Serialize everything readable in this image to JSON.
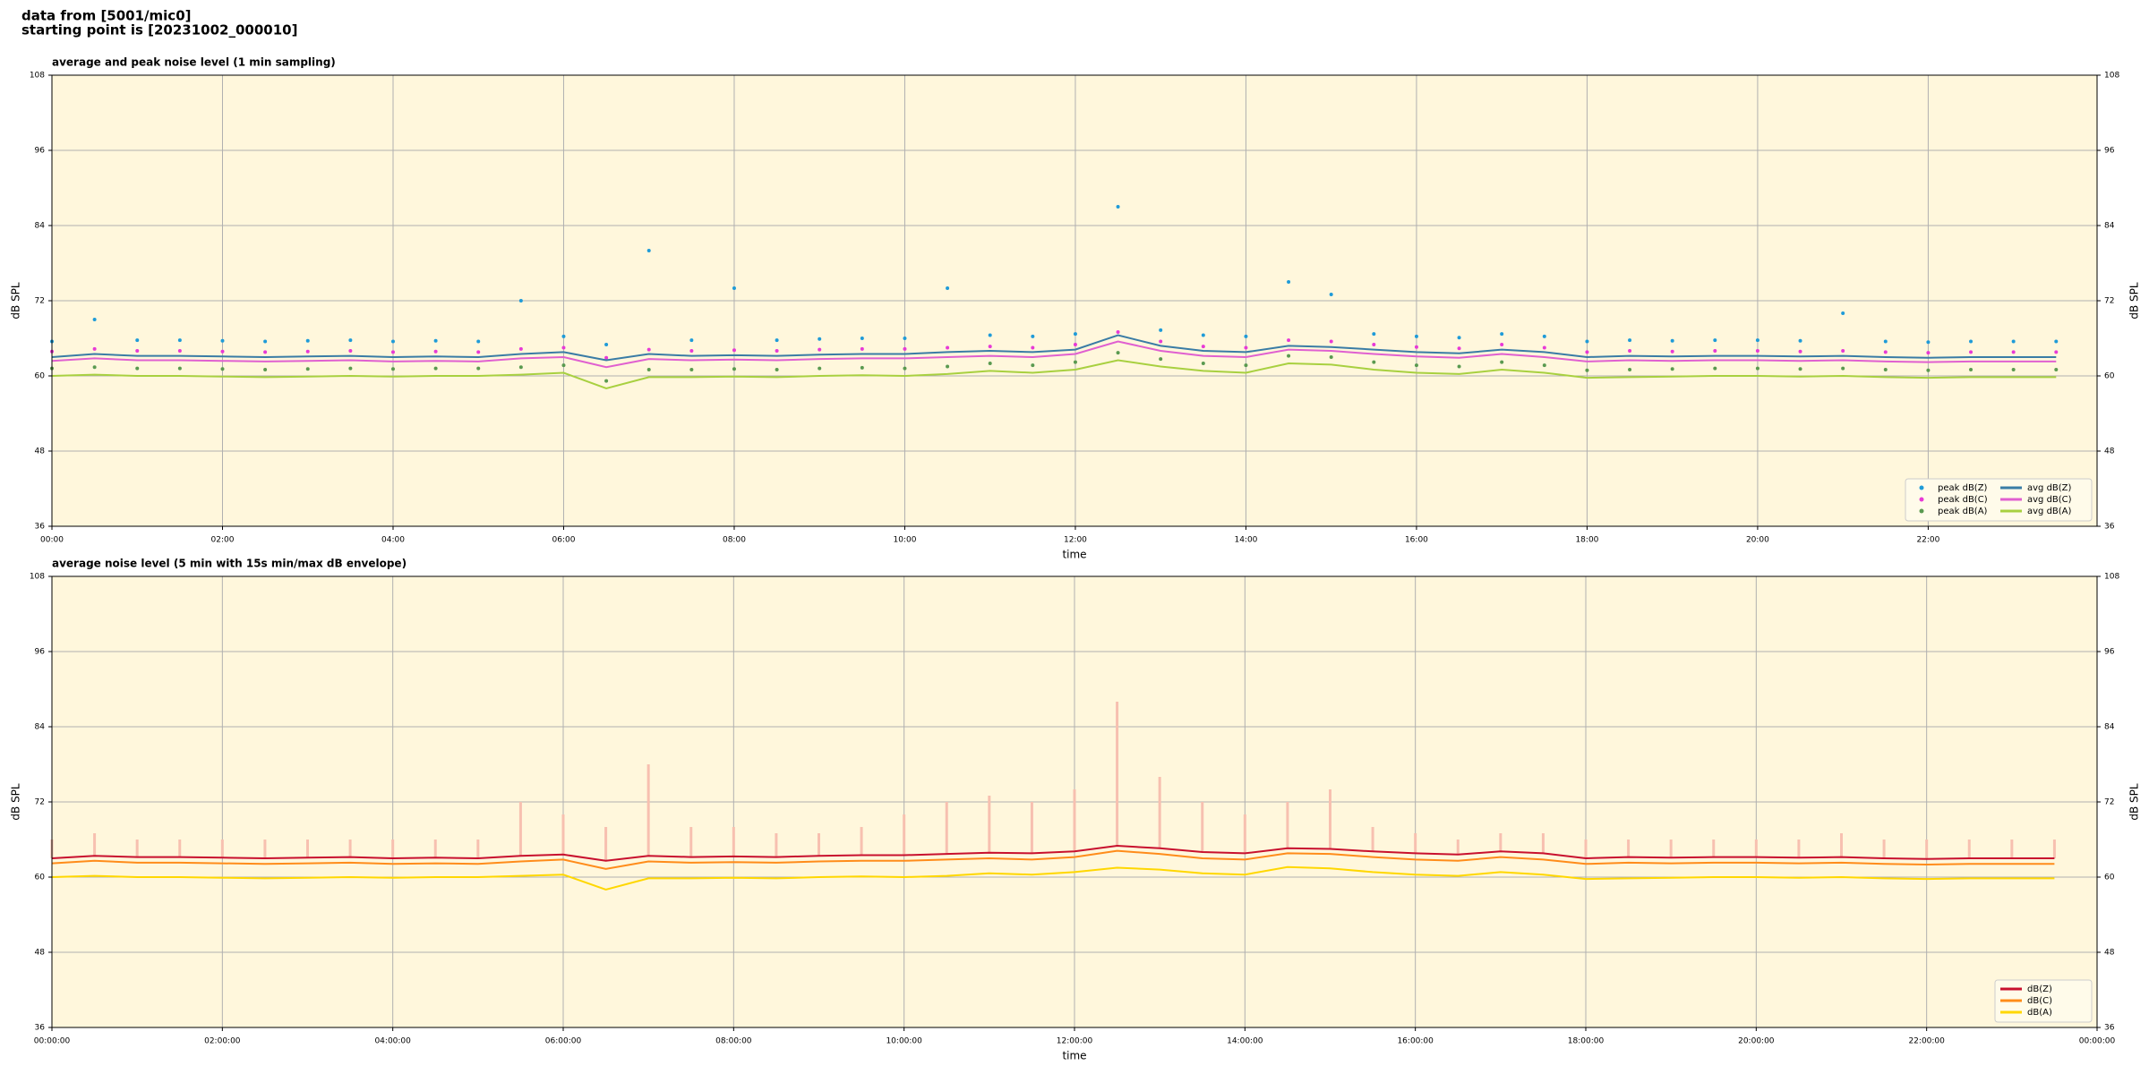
{
  "header": {
    "lines": [
      "data from [5001/mic0]",
      "starting point is [20231002_000010]"
    ]
  },
  "chart_data": [
    {
      "type": "timeseries",
      "title": "average and peak noise level (1 min sampling)",
      "xlabel": "time",
      "ylabel": "dB SPL",
      "xlim": [
        0,
        23.98
      ],
      "ylim": [
        36,
        108
      ],
      "yticks": [
        36,
        48,
        60,
        72,
        84,
        96,
        108
      ],
      "xticks": [
        {
          "value": 0,
          "label": "00:00"
        },
        {
          "value": 2,
          "label": "02:00"
        },
        {
          "value": 4,
          "label": "04:00"
        },
        {
          "value": 6,
          "label": "06:00"
        },
        {
          "value": 8,
          "label": "08:00"
        },
        {
          "value": 10,
          "label": "10:00"
        },
        {
          "value": 12,
          "label": "12:00"
        },
        {
          "value": 14,
          "label": "14:00"
        },
        {
          "value": 16,
          "label": "16:00"
        },
        {
          "value": 18,
          "label": "18:00"
        },
        {
          "value": 20,
          "label": "20:00"
        },
        {
          "value": 22,
          "label": "22:00"
        }
      ],
      "grid": true,
      "legend": "lower right",
      "legend_ncol": 2,
      "background": "#fff7dc",
      "x": [
        0,
        0.5,
        1,
        1.5,
        2,
        2.5,
        3,
        3.5,
        4,
        4.5,
        5,
        5.5,
        6,
        6.5,
        7,
        7.5,
        8,
        8.5,
        9,
        9.5,
        10,
        10.5,
        11,
        11.5,
        12,
        12.5,
        13,
        13.5,
        14,
        14.5,
        15,
        15.5,
        16,
        16.5,
        17,
        17.5,
        18,
        18.5,
        19,
        19.5,
        20,
        20.5,
        21,
        21.5,
        22,
        22.5,
        23,
        23.5
      ],
      "series": [
        {
          "name": "peak dB(Z)",
          "style": "dots",
          "color": "#1f9bd8",
          "values": [
            65.5,
            69,
            65.7,
            65.7,
            65.6,
            65.5,
            65.6,
            65.7,
            65.5,
            65.6,
            65.5,
            72,
            66.3,
            65,
            80,
            65.7,
            74,
            65.7,
            65.9,
            66,
            66,
            74,
            66.5,
            66.3,
            66.7,
            87,
            67.3,
            66.5,
            66.3,
            75,
            73,
            66.7,
            66.3,
            66.1,
            66.7,
            66.3,
            65.5,
            65.7,
            65.6,
            65.7,
            65.7,
            65.6,
            70,
            65.5,
            65.4,
            65.5,
            65.5,
            65.5
          ]
        },
        {
          "name": "peak dB(C)",
          "style": "dots",
          "color": "#e83ad6",
          "values": [
            63.9,
            64.3,
            64,
            64,
            63.9,
            63.8,
            63.9,
            64,
            63.8,
            63.9,
            63.8,
            64.3,
            64.5,
            62.9,
            64.2,
            64,
            64.1,
            64,
            64.2,
            64.3,
            64.3,
            64.5,
            64.7,
            64.5,
            65,
            67,
            65.5,
            64.7,
            64.5,
            65.7,
            65.5,
            65,
            64.6,
            64.4,
            65,
            64.5,
            63.8,
            64,
            63.9,
            64,
            64,
            63.9,
            64,
            63.8,
            63.7,
            63.8,
            63.8,
            63.8
          ]
        },
        {
          "name": "peak dB(A)",
          "style": "dots",
          "color": "#5a9a50",
          "values": [
            61.2,
            61.4,
            61.2,
            61.2,
            61.1,
            61,
            61.1,
            61.2,
            61.1,
            61.2,
            61.2,
            61.4,
            61.7,
            59.2,
            61,
            61,
            61.1,
            61,
            61.2,
            61.3,
            61.2,
            61.5,
            62,
            61.7,
            62.2,
            63.7,
            62.7,
            62,
            61.7,
            63.2,
            63,
            62.2,
            61.7,
            61.5,
            62.2,
            61.7,
            60.9,
            61,
            61.1,
            61.2,
            61.2,
            61.1,
            61.2,
            61,
            60.9,
            61,
            61,
            61
          ]
        },
        {
          "name": "avg dB(Z)",
          "style": "line",
          "color": "#3a7ca5",
          "values": [
            63,
            63.5,
            63.2,
            63.2,
            63.1,
            63,
            63.1,
            63.2,
            63,
            63.1,
            63,
            63.5,
            63.8,
            62.5,
            63.5,
            63.2,
            63.3,
            63.2,
            63.4,
            63.5,
            63.5,
            63.8,
            64,
            63.8,
            64.2,
            66.5,
            64.8,
            64,
            63.8,
            64.8,
            64.6,
            64.2,
            63.8,
            63.6,
            64.2,
            63.8,
            63,
            63.2,
            63.1,
            63.2,
            63.2,
            63.1,
            63.2,
            63,
            62.9,
            63,
            63,
            63
          ]
        },
        {
          "name": "avg dB(C)",
          "style": "line",
          "color": "#e060d0",
          "values": [
            62.4,
            62.8,
            62.5,
            62.5,
            62.4,
            62.3,
            62.4,
            62.5,
            62.3,
            62.4,
            62.3,
            62.8,
            63,
            61.4,
            62.7,
            62.5,
            62.6,
            62.5,
            62.7,
            62.8,
            62.8,
            63,
            63.2,
            63,
            63.5,
            65.5,
            64,
            63.2,
            63,
            64.2,
            64,
            63.5,
            63.1,
            62.9,
            63.5,
            63,
            62.3,
            62.5,
            62.4,
            62.5,
            62.5,
            62.4,
            62.5,
            62.3,
            62.2,
            62.3,
            62.3,
            62.3
          ]
        },
        {
          "name": "avg dB(A)",
          "style": "line",
          "color": "#a8d040",
          "values": [
            60,
            60.2,
            60,
            60,
            59.9,
            59.8,
            59.9,
            60,
            59.9,
            60,
            60,
            60.2,
            60.5,
            58,
            59.8,
            59.8,
            59.9,
            59.8,
            60,
            60.1,
            60,
            60.3,
            60.8,
            60.5,
            61,
            62.5,
            61.5,
            60.8,
            60.5,
            62,
            61.8,
            61,
            60.5,
            60.3,
            61,
            60.5,
            59.7,
            59.8,
            59.9,
            60,
            60,
            59.9,
            60,
            59.8,
            59.7,
            59.8,
            59.8,
            59.8
          ]
        }
      ]
    },
    {
      "type": "timeseries",
      "title": "average noise level (5 min with 15s min/max dB envelope)",
      "xlabel": "time",
      "ylabel": "dB SPL",
      "xlim": [
        0,
        24
      ],
      "ylim": [
        36,
        108
      ],
      "yticks": [
        36,
        48,
        60,
        72,
        84,
        96,
        108
      ],
      "xticks": [
        {
          "value": 0,
          "label": "00:00:00"
        },
        {
          "value": 2,
          "label": "02:00:00"
        },
        {
          "value": 4,
          "label": "04:00:00"
        },
        {
          "value": 6,
          "label": "06:00:00"
        },
        {
          "value": 8,
          "label": "08:00:00"
        },
        {
          "value": 10,
          "label": "10:00:00"
        },
        {
          "value": 12,
          "label": "12:00:00"
        },
        {
          "value": 14,
          "label": "14:00:00"
        },
        {
          "value": 16,
          "label": "16:00:00"
        },
        {
          "value": 18,
          "label": "18:00:00"
        },
        {
          "value": 20,
          "label": "20:00:00"
        },
        {
          "value": 22,
          "label": "22:00:00"
        },
        {
          "value": 24,
          "label": "00:00:00"
        }
      ],
      "grid": true,
      "legend": "lower right",
      "legend_ncol": 1,
      "background": "#fff7dc",
      "x": [
        0,
        0.5,
        1,
        1.5,
        2,
        2.5,
        3,
        3.5,
        4,
        4.5,
        5,
        5.5,
        6,
        6.5,
        7,
        7.5,
        8,
        8.5,
        9,
        9.5,
        10,
        10.5,
        11,
        11.5,
        12,
        12.5,
        13,
        13.5,
        14,
        14.5,
        15,
        15.5,
        16,
        16.5,
        17,
        17.5,
        18,
        18.5,
        19,
        19.5,
        20,
        20.5,
        21,
        21.5,
        22,
        22.5,
        23,
        23.5
      ],
      "envelope_color": "#f7c0b0",
      "envelope_max": [
        66,
        67,
        66,
        66,
        66,
        66,
        66,
        66,
        66,
        66,
        66,
        72,
        70,
        68,
        78,
        68,
        68,
        67,
        67,
        68,
        70,
        72,
        73,
        72,
        74,
        88,
        76,
        72,
        70,
        72,
        74,
        68,
        67,
        66,
        67,
        67,
        66,
        66,
        66,
        66,
        66,
        66,
        67,
        66,
        66,
        66,
        66,
        66
      ],
      "series": [
        {
          "name": "dB(Z)",
          "style": "line",
          "color": "#c8102e",
          "values": [
            63,
            63.4,
            63.2,
            63.2,
            63.1,
            63,
            63.1,
            63.2,
            63,
            63.1,
            63,
            63.4,
            63.6,
            62.6,
            63.4,
            63.2,
            63.3,
            63.2,
            63.4,
            63.5,
            63.5,
            63.7,
            63.9,
            63.8,
            64.1,
            65,
            64.6,
            64,
            63.8,
            64.6,
            64.5,
            64.1,
            63.8,
            63.6,
            64.1,
            63.8,
            63,
            63.2,
            63.1,
            63.2,
            63.2,
            63.1,
            63.2,
            63,
            62.9,
            63,
            63,
            63
          ]
        },
        {
          "name": "dB(C)",
          "style": "line",
          "color": "#ff8c1a",
          "values": [
            62.2,
            62.6,
            62.3,
            62.3,
            62.2,
            62.1,
            62.2,
            62.3,
            62.1,
            62.2,
            62.1,
            62.5,
            62.8,
            61.3,
            62.5,
            62.3,
            62.4,
            62.3,
            62.5,
            62.6,
            62.6,
            62.8,
            63,
            62.8,
            63.2,
            64.2,
            63.7,
            63,
            62.8,
            63.8,
            63.7,
            63.2,
            62.8,
            62.6,
            63.2,
            62.8,
            62.1,
            62.3,
            62.2,
            62.3,
            62.3,
            62.2,
            62.3,
            62.1,
            62,
            62.1,
            62.1,
            62.1
          ]
        },
        {
          "name": "dB(A)",
          "style": "line",
          "color": "#ffd700",
          "values": [
            60,
            60.2,
            60,
            60,
            59.9,
            59.8,
            59.9,
            60,
            59.9,
            60,
            60,
            60.2,
            60.4,
            58,
            59.8,
            59.8,
            59.9,
            59.8,
            60,
            60.1,
            60,
            60.2,
            60.6,
            60.4,
            60.8,
            61.5,
            61.2,
            60.6,
            60.4,
            61.6,
            61.4,
            60.8,
            60.4,
            60.2,
            60.8,
            60.4,
            59.7,
            59.8,
            59.9,
            60,
            60,
            59.9,
            60,
            59.8,
            59.7,
            59.8,
            59.8,
            59.8
          ]
        }
      ]
    }
  ]
}
